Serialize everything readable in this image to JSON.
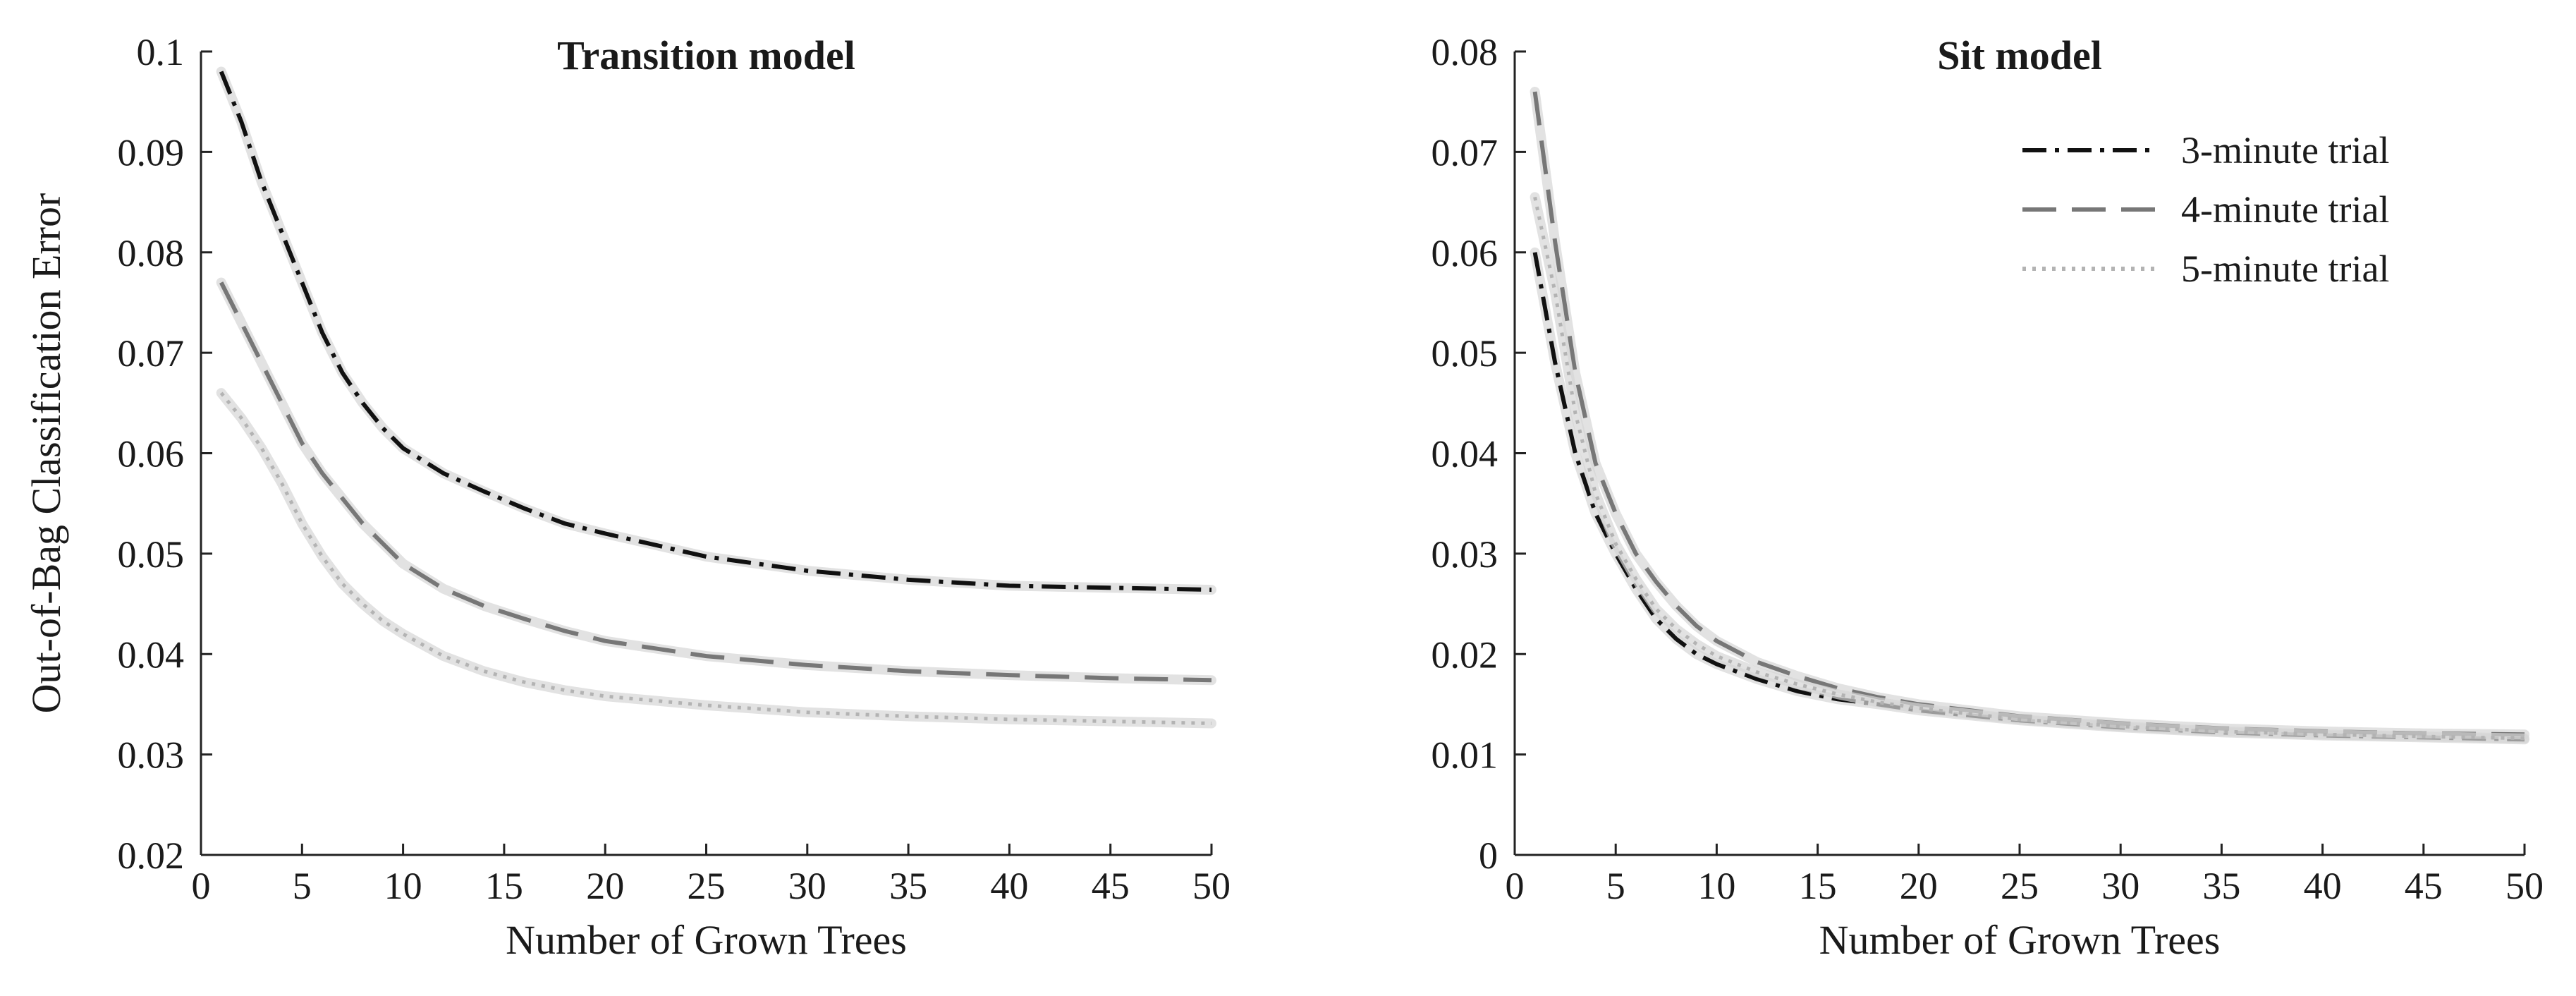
{
  "chart_data": [
    {
      "type": "line",
      "title": "Transition model",
      "xlabel": "Number of Grown Trees",
      "ylabel": "Out-of-Bag Classification Error",
      "xlim": [
        0,
        50
      ],
      "ylim": [
        0.02,
        0.1
      ],
      "xticks": [
        0,
        5,
        10,
        15,
        20,
        25,
        30,
        35,
        40,
        45,
        50
      ],
      "yticks": [
        "0.02",
        "0.03",
        "0.04",
        "0.05",
        "0.06",
        "0.07",
        "0.08",
        "0.09",
        "0.1"
      ],
      "grid": false,
      "x": [
        1,
        2,
        3,
        4,
        5,
        6,
        7,
        8,
        9,
        10,
        12,
        14,
        16,
        18,
        20,
        25,
        30,
        35,
        40,
        45,
        50
      ],
      "series": [
        {
          "name": "3-minute trial",
          "style": "dash-dot",
          "color": "#111111",
          "values": [
            0.098,
            0.093,
            0.087,
            0.082,
            0.077,
            0.072,
            0.068,
            0.065,
            0.0625,
            0.0605,
            0.058,
            0.0562,
            0.0545,
            0.053,
            0.052,
            0.0497,
            0.0483,
            0.0474,
            0.0468,
            0.0466,
            0.0464
          ]
        },
        {
          "name": "4-minute trial",
          "style": "dashed",
          "color": "#777777",
          "values": [
            0.077,
            0.073,
            0.069,
            0.065,
            0.061,
            0.058,
            0.0555,
            0.053,
            0.051,
            0.049,
            0.0465,
            0.0448,
            0.0435,
            0.0423,
            0.0413,
            0.0398,
            0.0389,
            0.0383,
            0.0379,
            0.0376,
            0.0374
          ]
        },
        {
          "name": "5-minute trial",
          "style": "dotted",
          "color": "#b3b3b3",
          "values": [
            0.066,
            0.0635,
            0.0605,
            0.057,
            0.053,
            0.0497,
            0.047,
            0.045,
            0.0433,
            0.042,
            0.0398,
            0.0383,
            0.0372,
            0.0364,
            0.0358,
            0.0349,
            0.0342,
            0.0338,
            0.0335,
            0.0333,
            0.0331
          ]
        }
      ]
    },
    {
      "type": "line",
      "title": "Sit model",
      "xlabel": "Number of Grown Trees",
      "ylabel": "",
      "xlim": [
        0,
        50
      ],
      "ylim": [
        0,
        0.08
      ],
      "xticks": [
        0,
        5,
        10,
        15,
        20,
        25,
        30,
        35,
        40,
        45,
        50
      ],
      "yticks": [
        "0",
        "0.01",
        "0.02",
        "0.03",
        "0.04",
        "0.05",
        "0.06",
        "0.07",
        "0.08"
      ],
      "grid": false,
      "legend": {
        "position": "top-right",
        "entries": [
          "3-minute trial",
          "4-minute trial",
          "5-minute trial"
        ]
      },
      "x": [
        1,
        2,
        3,
        4,
        5,
        6,
        7,
        8,
        9,
        10,
        12,
        14,
        16,
        18,
        20,
        25,
        30,
        35,
        40,
        45,
        50
      ],
      "series": [
        {
          "name": "3-minute trial",
          "style": "dash-dot",
          "color": "#111111",
          "values": [
            0.06,
            0.049,
            0.04,
            0.034,
            0.03,
            0.0265,
            0.0235,
            0.0215,
            0.02,
            0.019,
            0.0175,
            0.0163,
            0.0155,
            0.015,
            0.0144,
            0.0134,
            0.0127,
            0.0122,
            0.0119,
            0.0117,
            0.0115
          ]
        },
        {
          "name": "4-minute trial",
          "style": "dashed",
          "color": "#777777",
          "values": [
            0.076,
            0.061,
            0.048,
            0.039,
            0.034,
            0.03,
            0.0272,
            0.0248,
            0.0228,
            0.0213,
            0.0192,
            0.0178,
            0.0166,
            0.0157,
            0.015,
            0.0138,
            0.0131,
            0.0126,
            0.0123,
            0.0121,
            0.012
          ]
        },
        {
          "name": "5-minute trial",
          "style": "dotted",
          "color": "#b3b3b3",
          "values": [
            0.0655,
            0.056,
            0.044,
            0.036,
            0.031,
            0.0275,
            0.0245,
            0.0225,
            0.021,
            0.0198,
            0.0182,
            0.017,
            0.016,
            0.0152,
            0.0146,
            0.0135,
            0.0128,
            0.0123,
            0.012,
            0.0118,
            0.0116
          ]
        }
      ]
    }
  ]
}
